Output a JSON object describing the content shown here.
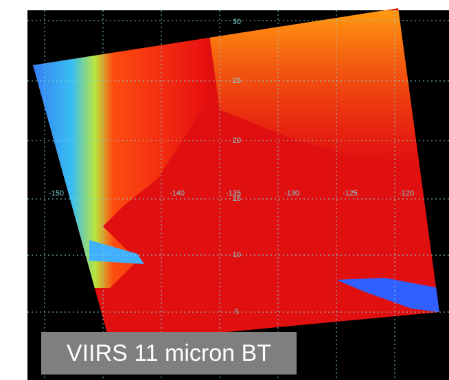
{
  "caption": "VIIRS 11 micron BT",
  "lat_labels": [
    "30",
    "25",
    "20",
    "15",
    "10",
    "5"
  ],
  "lon_labels": [
    "-150",
    "-140",
    "-135",
    "-130",
    "-125",
    "-120"
  ]
}
